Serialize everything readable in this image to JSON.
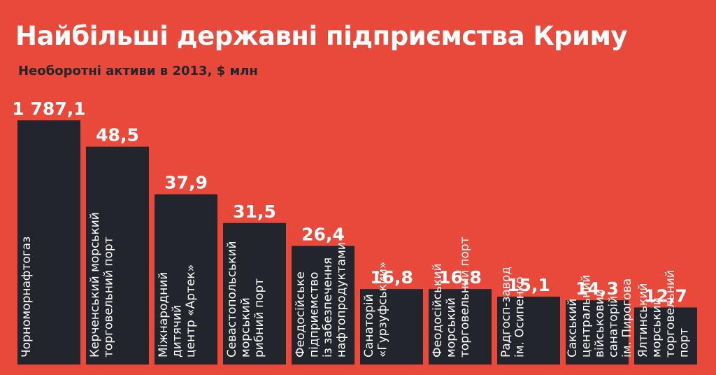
{
  "header": {
    "title": "Найбільші державні підприємства Криму",
    "subtitle": "Необоротні активи в 2013, $ млн"
  },
  "colors": {
    "background": "#E8493A",
    "bar": "#23252C",
    "text_light": "#ffffff",
    "text_dark": "#23252C"
  },
  "chart_data": {
    "type": "bar",
    "title": "Найбільші державні підприємства Криму",
    "subtitle": "Необоротні активи в 2013, $ млн",
    "axis_break": true,
    "categories": [
      "Чорноморнафтогаз",
      "Керченський морський торговельний порт",
      "Міжнародний дитячий центр «Артек»",
      "Севастопольський морський рибний порт",
      "Феодосійське підприємство із забезпечення нафтопродуктами",
      "Санаторій «Гурзуфський»",
      "Феодосійський морський торговельний порт",
      "Радгосп-завод ім. Осипенко",
      "Сакський центральний військовий санаторій ім. Пирогова",
      "Ялтинський морський торговельний порт"
    ],
    "category_lines": [
      [
        "Чорноморнафтогаз"
      ],
      [
        "Керченський морський",
        "торговельний порт"
      ],
      [
        "Міжнародний",
        "дитячий",
        "центр «Артек»"
      ],
      [
        "Севастопольський",
        "морський",
        "рибний порт"
      ],
      [
        "Феодосійське",
        "підприємство",
        "із забезпечення",
        "нафтопродуктами"
      ],
      [
        "Санаторій",
        "«Гурзуфський»"
      ],
      [
        "Феодосійський",
        "морський",
        "торговельний порт"
      ],
      [
        "Радгосп-завод",
        "ім. Осипенко"
      ],
      [
        "Сакський",
        "центральний",
        "військовий",
        "санаторій",
        "ім. Пирогова"
      ],
      [
        "Ялтинський",
        "морський",
        "торговельний",
        "порт"
      ]
    ],
    "values": [
      1787.1,
      48.5,
      37.9,
      31.5,
      26.4,
      16.8,
      16.8,
      15.1,
      14.3,
      12.7
    ],
    "value_labels": [
      "1 787,1",
      "48,5",
      "37,9",
      "31,5",
      "26,4",
      "16,8",
      "16,8",
      "15,1",
      "14,3",
      "12,7"
    ],
    "legend": false,
    "grid": false
  }
}
